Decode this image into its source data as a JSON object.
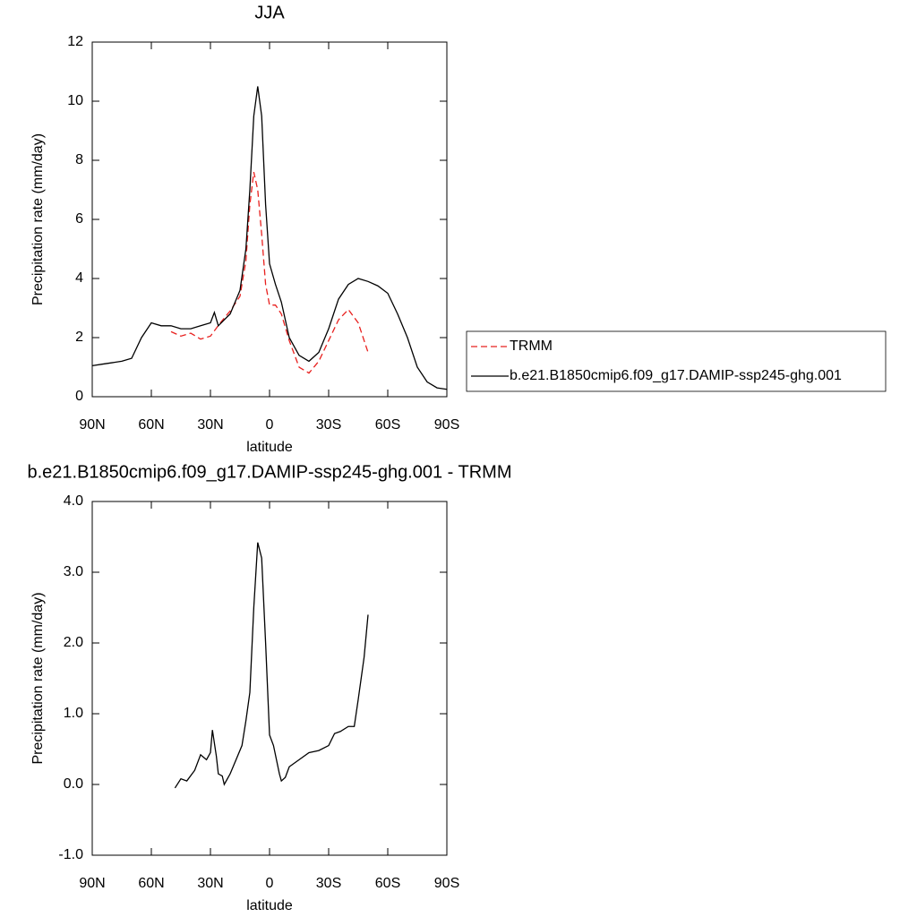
{
  "chart_data": [
    {
      "type": "line",
      "title": "JJA",
      "x_label": "latitude",
      "y_label": "Precipitation rate (mm/day)",
      "xlim": [
        90,
        -90
      ],
      "ylim": [
        0,
        12
      ],
      "xticks": [
        {
          "value": 90,
          "label": "90N"
        },
        {
          "value": 60,
          "label": "60N"
        },
        {
          "value": 30,
          "label": "30N"
        },
        0,
        {
          "value": -30,
          "label": "30S"
        },
        {
          "value": -60,
          "label": "60S"
        },
        {
          "value": -90,
          "label": "90S"
        }
      ],
      "yticks": [
        0,
        2,
        4,
        6,
        8,
        10,
        12
      ],
      "legend": "right",
      "series": [
        {
          "name": "TRMM",
          "color": "#e8201e",
          "style": "dashed",
          "x": [
            50,
            45,
            40,
            35,
            30,
            25,
            20,
            15,
            12,
            10,
            8,
            6,
            4,
            2,
            0,
            -3,
            -6,
            -10,
            -15,
            -20,
            -25,
            -30,
            -35,
            -40,
            -45,
            -50
          ],
          "values": [
            2.2,
            2.05,
            2.15,
            1.95,
            2.05,
            2.5,
            2.9,
            3.4,
            4.6,
            6.5,
            7.6,
            7.0,
            5.5,
            3.8,
            3.1,
            3.1,
            2.8,
            1.9,
            1.0,
            0.8,
            1.2,
            1.9,
            2.6,
            2.95,
            2.5,
            1.5
          ]
        },
        {
          "name": "b.e21.B1850cmip6.f09_g17.DAMIP-ssp245-ghg.001",
          "color": "#000000",
          "style": "solid",
          "x": [
            90,
            85,
            80,
            75,
            70,
            65,
            62,
            60,
            55,
            50,
            45,
            40,
            35,
            30,
            28,
            26,
            20,
            15,
            12,
            10,
            8,
            6,
            4,
            2,
            0,
            -3,
            -6,
            -10,
            -15,
            -20,
            -25,
            -30,
            -35,
            -40,
            -45,
            -50,
            -55,
            -60,
            -65,
            -70,
            -75,
            -80,
            -85,
            -90
          ],
          "values": [
            1.05,
            1.1,
            1.15,
            1.2,
            1.3,
            2.0,
            2.3,
            2.5,
            2.4,
            2.4,
            2.3,
            2.3,
            2.4,
            2.5,
            2.85,
            2.4,
            2.8,
            3.6,
            5.0,
            7.0,
            9.5,
            10.5,
            9.5,
            6.5,
            4.5,
            3.8,
            3.2,
            2.0,
            1.4,
            1.2,
            1.5,
            2.3,
            3.3,
            3.8,
            4.0,
            3.9,
            3.75,
            3.5,
            2.8,
            2.0,
            1.0,
            0.5,
            0.3,
            0.25
          ]
        }
      ]
    },
    {
      "type": "line",
      "title": "b.e21.B1850cmip6.f09_g17.DAMIP-ssp245-ghg.001 - TRMM",
      "x_label": "latitude",
      "y_label": "Precipitation rate (mm/day)",
      "xlim": [
        90,
        -90
      ],
      "ylim": [
        -1,
        4
      ],
      "xticks": [
        {
          "value": 90,
          "label": "90N"
        },
        {
          "value": 60,
          "label": "60N"
        },
        {
          "value": 30,
          "label": "30N"
        },
        0,
        {
          "value": -30,
          "label": "30S"
        },
        {
          "value": -60,
          "label": "60S"
        },
        {
          "value": -90,
          "label": "90S"
        }
      ],
      "yticks": [
        {
          "value": -1,
          "label": "-1.0"
        },
        {
          "value": 0,
          "label": "0.0"
        },
        {
          "value": 1,
          "label": "1.0"
        },
        {
          "value": 2,
          "label": "2.0"
        },
        {
          "value": 3,
          "label": "3.0"
        },
        {
          "value": 4,
          "label": "4.0"
        }
      ],
      "series": [
        {
          "color": "#000000",
          "style": "solid",
          "x": [
            48,
            45,
            42,
            38,
            35,
            32,
            30,
            29,
            27,
            26,
            24,
            23,
            20,
            17,
            14,
            12,
            10,
            8,
            6,
            4,
            2,
            0,
            -2,
            -5,
            -6,
            -8,
            -10,
            -15,
            -20,
            -25,
            -30,
            -33,
            -36,
            -40,
            -43,
            -45,
            -48,
            -50
          ],
          "values": [
            -0.05,
            0.08,
            0.05,
            0.2,
            0.42,
            0.35,
            0.45,
            0.77,
            0.4,
            0.15,
            0.12,
            0.0,
            0.15,
            0.35,
            0.55,
            0.9,
            1.3,
            2.5,
            3.42,
            3.2,
            2.0,
            0.7,
            0.55,
            0.15,
            0.05,
            0.1,
            0.25,
            0.35,
            0.45,
            0.48,
            0.55,
            0.72,
            0.75,
            0.82,
            0.82,
            1.2,
            1.8,
            2.4
          ]
        }
      ]
    }
  ]
}
